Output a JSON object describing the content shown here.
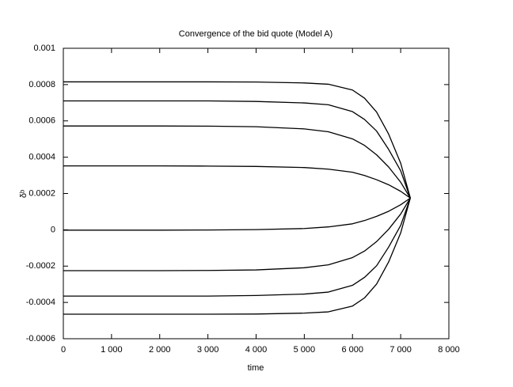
{
  "chart_data": {
    "type": "line",
    "title": "Convergence of the bid quote (Model A)",
    "x_label": "time",
    "y_label": "δᵇ",
    "x": [
      0,
      1000,
      2000,
      3000,
      4000,
      5000,
      5500,
      6000,
      6250,
      6500,
      6750,
      7000,
      7200
    ],
    "series": [
      {
        "color": "#000000",
        "values": [
          0.000815,
          0.000815,
          0.000815,
          0.000815,
          0.000814,
          0.000809,
          0.000802,
          0.00077,
          0.000725,
          0.000649,
          0.000527,
          0.000367,
          0.000175
        ]
      },
      {
        "color": "#000000",
        "values": [
          0.00071,
          0.00071,
          0.00071,
          0.00071,
          0.000707,
          0.000699,
          0.000689,
          0.000651,
          0.000608,
          0.000544,
          0.000443,
          0.000325,
          0.000175
        ]
      },
      {
        "color": "#000000",
        "values": [
          0.000572,
          0.000572,
          0.000572,
          0.000571,
          0.000568,
          0.000556,
          0.00054,
          0.000501,
          0.000465,
          0.000413,
          0.000346,
          0.000262,
          0.000175
        ]
      },
      {
        "color": "#000000",
        "values": [
          0.000352,
          0.000352,
          0.000352,
          0.000351,
          0.000349,
          0.000343,
          0.000334,
          0.000317,
          0.000299,
          0.000276,
          0.000248,
          0.000212,
          0.000175
        ]
      },
      {
        "color": "#000000",
        "values": [
          -2e-06,
          -2e-06,
          -2e-06,
          -1e-06,
          1e-06,
          7e-06,
          1.6e-05,
          3.3e-05,
          5.1e-05,
          7.4e-05,
          0.000102,
          0.000138,
          0.000175
        ]
      },
      {
        "color": "#000000",
        "values": [
          -0.000225,
          -0.000225,
          -0.000225,
          -0.000224,
          -0.000221,
          -0.000209,
          -0.000193,
          -0.000153,
          -0.000117,
          -6.5e-05,
          3e-06,
          8.7e-05,
          0.000175
        ]
      },
      {
        "color": "#000000",
        "values": [
          -0.000365,
          -0.000365,
          -0.000365,
          -0.000365,
          -0.000362,
          -0.000354,
          -0.000343,
          -0.000306,
          -0.000262,
          -0.000198,
          -9.5e-05,
          2.4e-05,
          0.000175
        ]
      },
      {
        "color": "#000000",
        "values": [
          -0.000465,
          -0.000465,
          -0.000465,
          -0.000465,
          -0.000464,
          -0.000459,
          -0.000452,
          -0.00042,
          -0.000375,
          -0.000299,
          -0.000177,
          -1.7e-05,
          0.000175
        ]
      }
    ],
    "xlim": [
      0,
      8000
    ],
    "xticks": [
      0,
      {
        "value": 1000,
        "label": "1 000"
      },
      {
        "value": 2000,
        "label": "2 000"
      },
      {
        "value": 3000,
        "label": "3 000"
      },
      {
        "value": 4000,
        "label": "4 000"
      },
      {
        "value": 5000,
        "label": "5 000"
      },
      {
        "value": 6000,
        "label": "6 000"
      },
      {
        "value": 7000,
        "label": "7 000"
      },
      {
        "value": 8000,
        "label": "8 000"
      }
    ],
    "ylim": [
      -0.0006,
      0.001
    ],
    "yticks": [
      -0.0006,
      -0.0004,
      -0.0002,
      0,
      0.0002,
      0.0004,
      0.0006,
      0.0008,
      0.001
    ],
    "grid": false
  }
}
